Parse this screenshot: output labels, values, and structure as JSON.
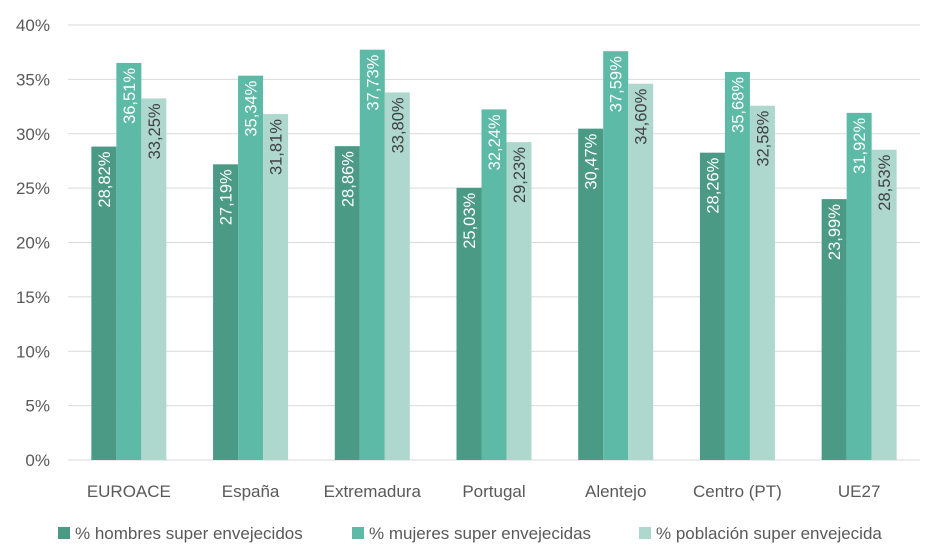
{
  "chart_data": {
    "type": "bar",
    "title": "",
    "xlabel": "",
    "ylabel": "",
    "ylim": [
      0,
      40
    ],
    "y_ticks": [
      "0%",
      "5%",
      "10%",
      "15%",
      "20%",
      "25%",
      "30%",
      "35%",
      "40%"
    ],
    "y_tick_values": [
      0,
      5,
      10,
      15,
      20,
      25,
      30,
      35,
      40
    ],
    "grid": true,
    "legend_position": "bottom",
    "categories": [
      "EUROACE",
      "España",
      "Extremadura",
      "Portugal",
      "Alentejo",
      "Centro (PT)",
      "UE27"
    ],
    "series": [
      {
        "name": "% hombres super envejecidos",
        "color": "#4a9a86",
        "label_color": "#ffffff",
        "values": [
          28.82,
          27.19,
          28.86,
          25.03,
          30.47,
          28.26,
          23.99
        ],
        "labels": [
          "28,82%",
          "27,19%",
          "28,86%",
          "25,03%",
          "30,47%",
          "28,26%",
          "23,99%"
        ]
      },
      {
        "name": "% mujeres super envejecidas",
        "color": "#5cbaa6",
        "label_color": "#ffffff",
        "values": [
          36.51,
          35.34,
          37.73,
          32.24,
          37.59,
          35.68,
          31.92
        ],
        "labels": [
          "36,51%",
          "35,34%",
          "37,73%",
          "32,24%",
          "37,59%",
          "35,68%",
          "31,92%"
        ]
      },
      {
        "name": "% población super envejecida",
        "color": "#aed8cd",
        "label_color": "#404040",
        "values": [
          33.25,
          31.81,
          33.8,
          29.23,
          34.6,
          32.58,
          28.53
        ],
        "labels": [
          "33,25%",
          "31,81%",
          "33,80%",
          "29,23%",
          "34,60%",
          "32,58%",
          "28,53%"
        ]
      }
    ]
  }
}
